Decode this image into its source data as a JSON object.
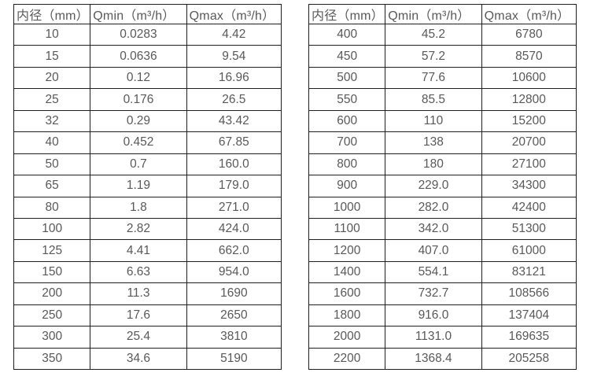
{
  "colors": {
    "border": "#1f1f1f",
    "text": "#595959",
    "background": "#ffffff"
  },
  "chart_data": [
    {
      "type": "table",
      "name": "flow-table-small-diameters",
      "columns": [
        "内径（mm）",
        "Qmin（m³/h）",
        "Qmax（m³/h）"
      ],
      "rows": [
        [
          "10",
          "0.0283",
          "4.42"
        ],
        [
          "15",
          "0.0636",
          "9.54"
        ],
        [
          "20",
          "0.12",
          "16.96"
        ],
        [
          "25",
          "0.176",
          "26.5"
        ],
        [
          "32",
          "0.29",
          "43.42"
        ],
        [
          "40",
          "0.452",
          "67.85"
        ],
        [
          "50",
          "0.7",
          "160.0"
        ],
        [
          "65",
          "1.19",
          "179.0"
        ],
        [
          "80",
          "1.8",
          "271.0"
        ],
        [
          "100",
          "2.82",
          "424.0"
        ],
        [
          "125",
          "4.41",
          "662.0"
        ],
        [
          "150",
          "6.63",
          "954.0"
        ],
        [
          "200",
          "11.3",
          "1690"
        ],
        [
          "250",
          "17.6",
          "2650"
        ],
        [
          "300",
          "25.4",
          "3810"
        ],
        [
          "350",
          "34.6",
          "5190"
        ]
      ]
    },
    {
      "type": "table",
      "name": "flow-table-large-diameters",
      "columns": [
        "内径（mm）",
        "Qmin（m³/h）",
        "Qmax（m³/h）"
      ],
      "rows": [
        [
          "400",
          "45.2",
          "6780"
        ],
        [
          "450",
          "57.2",
          "8570"
        ],
        [
          "500",
          "77.6",
          "10600"
        ],
        [
          "550",
          "85.5",
          "12800"
        ],
        [
          "600",
          "110",
          "15200"
        ],
        [
          "700",
          "138",
          "20700"
        ],
        [
          "800",
          "180",
          "27100"
        ],
        [
          "900",
          "229.0",
          "34300"
        ],
        [
          "1000",
          "282.0",
          "42400"
        ],
        [
          "1100",
          "342.0",
          "51300"
        ],
        [
          "1200",
          "407.0",
          "61000"
        ],
        [
          "1400",
          "554.1",
          "83121"
        ],
        [
          "1600",
          "732.7",
          "108566"
        ],
        [
          "1800",
          "916.0",
          "137404"
        ],
        [
          "2000",
          "1131.0",
          "169635"
        ],
        [
          "2200",
          "1368.4",
          "205258"
        ]
      ]
    }
  ]
}
